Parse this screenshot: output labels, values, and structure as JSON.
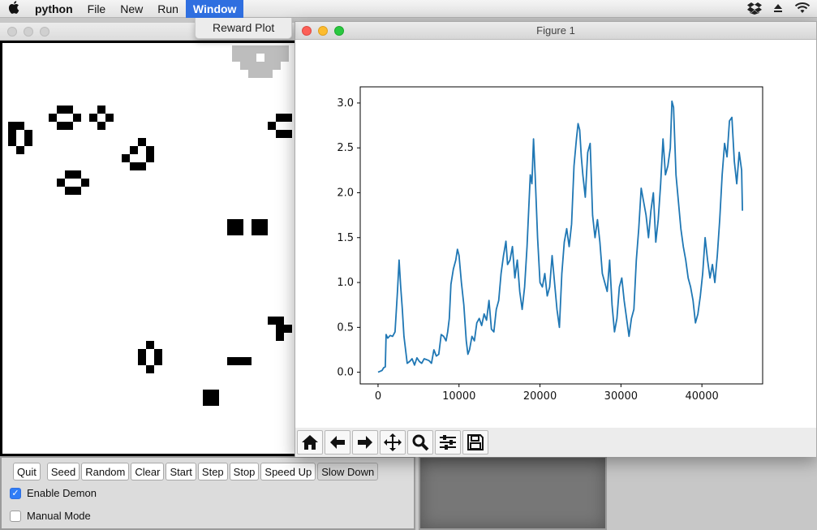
{
  "menubar": {
    "apple": "",
    "items": [
      "python",
      "File",
      "New",
      "Run",
      "Window"
    ]
  },
  "dropdown": {
    "item": "Reward Plot"
  },
  "figure": {
    "title": "Figure 1",
    "toolbar": [
      "home-icon",
      "back-icon",
      "forward-icon",
      "pan-icon",
      "zoom-icon",
      "configure-icon",
      "save-icon"
    ]
  },
  "controls": {
    "buttons": [
      "Quit",
      "Seed",
      "Random",
      "Clear",
      "Start",
      "Step",
      "Stop",
      "Speed Up",
      "Slow Down"
    ],
    "enable_demon": "Enable Demon",
    "enable_demon_checked": true,
    "manual_mode": "Manual Mode",
    "manual_mode_checked": false
  },
  "chart_data": {
    "type": "line",
    "xlim": [
      -2200,
      47500
    ],
    "ylim": [
      -0.13,
      3.18
    ],
    "xticks": [
      0,
      10000,
      20000,
      30000,
      40000
    ],
    "xtick_labels": [
      "0",
      "10000",
      "20000",
      "30000",
      "40000"
    ],
    "yticks": [
      0.0,
      0.5,
      1.0,
      1.5,
      2.0,
      2.5,
      3.0
    ],
    "ytick_labels": [
      "0.0",
      "0.5",
      "1.0",
      "1.5",
      "2.0",
      "2.5",
      "3.0"
    ],
    "color": "#1f77b4",
    "series": [
      {
        "x": [
          0,
          500,
          700,
          900,
          1000,
          1200,
          1500,
          1800,
          2100,
          2400,
          2600,
          2800,
          3000,
          3200,
          3400,
          3600,
          3900,
          4200,
          4500,
          4800,
          5100,
          5400,
          5700,
          6000,
          6300,
          6600,
          6900,
          7200,
          7500,
          7800,
          8100,
          8400,
          8600,
          8800,
          9000,
          9300,
          9600,
          9800,
          10000,
          10300,
          10600,
          10900,
          11100,
          11300,
          11600,
          11900,
          12200,
          12500,
          12800,
          13100,
          13400,
          13700,
          14000,
          14300,
          14600,
          14900,
          15200,
          15500,
          15800,
          16000,
          16300,
          16600,
          16900,
          17200,
          17500,
          17800,
          18100,
          18400,
          18600,
          18800,
          19000,
          19200,
          19400,
          19700,
          20000,
          20300,
          20600,
          20900,
          21200,
          21500,
          21800,
          22100,
          22400,
          22700,
          23000,
          23300,
          23600,
          23900,
          24200,
          24500,
          24700,
          24900,
          25100,
          25300,
          25600,
          25900,
          26200,
          26500,
          26800,
          27100,
          27400,
          27700,
          28000,
          28300,
          28600,
          28900,
          29200,
          29500,
          29800,
          30100,
          30400,
          30700,
          31000,
          31300,
          31600,
          31900,
          32200,
          32500,
          32800,
          33100,
          33400,
          33700,
          34000,
          34300,
          34600,
          34900,
          35200,
          35500,
          35800,
          36100,
          36300,
          36500,
          36800,
          37100,
          37400,
          37700,
          38000,
          38300,
          38600,
          38900,
          39200,
          39500,
          39800,
          40100,
          40400,
          40700,
          41000,
          41300,
          41600,
          41900,
          42200,
          42500,
          42800,
          43100,
          43400,
          43700,
          44000,
          44300,
          44600,
          44900,
          45000
        ],
        "y": [
          0.0,
          0.02,
          0.05,
          0.06,
          0.42,
          0.38,
          0.41,
          0.4,
          0.45,
          0.9,
          1.25,
          0.95,
          0.7,
          0.4,
          0.25,
          0.1,
          0.12,
          0.15,
          0.08,
          0.16,
          0.12,
          0.1,
          0.15,
          0.14,
          0.13,
          0.1,
          0.25,
          0.18,
          0.2,
          0.42,
          0.4,
          0.35,
          0.45,
          0.6,
          0.98,
          1.15,
          1.25,
          1.37,
          1.3,
          1.0,
          0.75,
          0.35,
          0.2,
          0.25,
          0.4,
          0.35,
          0.55,
          0.6,
          0.52,
          0.65,
          0.58,
          0.8,
          0.48,
          0.45,
          0.7,
          0.8,
          1.1,
          1.3,
          1.46,
          1.2,
          1.25,
          1.4,
          1.05,
          1.25,
          0.9,
          0.7,
          0.95,
          1.4,
          1.8,
          2.2,
          2.1,
          2.6,
          2.2,
          1.5,
          1.0,
          0.95,
          1.1,
          0.85,
          0.95,
          1.3,
          1.0,
          0.7,
          0.5,
          1.1,
          1.45,
          1.6,
          1.4,
          1.65,
          2.3,
          2.6,
          2.77,
          2.7,
          2.4,
          2.2,
          1.95,
          2.45,
          2.55,
          1.75,
          1.5,
          1.7,
          1.45,
          1.1,
          1.0,
          0.9,
          1.25,
          0.75,
          0.45,
          0.6,
          0.95,
          1.05,
          0.8,
          0.6,
          0.4,
          0.6,
          0.7,
          1.25,
          1.6,
          2.05,
          1.9,
          1.75,
          1.5,
          1.8,
          2.0,
          1.45,
          1.7,
          2.1,
          2.6,
          2.2,
          2.3,
          2.5,
          3.02,
          2.95,
          2.2,
          1.9,
          1.6,
          1.4,
          1.25,
          1.05,
          0.95,
          0.8,
          0.55,
          0.65,
          0.85,
          1.1,
          1.5,
          1.25,
          1.05,
          1.2,
          1.0,
          1.3,
          1.7,
          2.2,
          2.55,
          2.4,
          2.8,
          2.84,
          2.35,
          2.1,
          2.45,
          2.25,
          1.8
        ]
      }
    ]
  }
}
